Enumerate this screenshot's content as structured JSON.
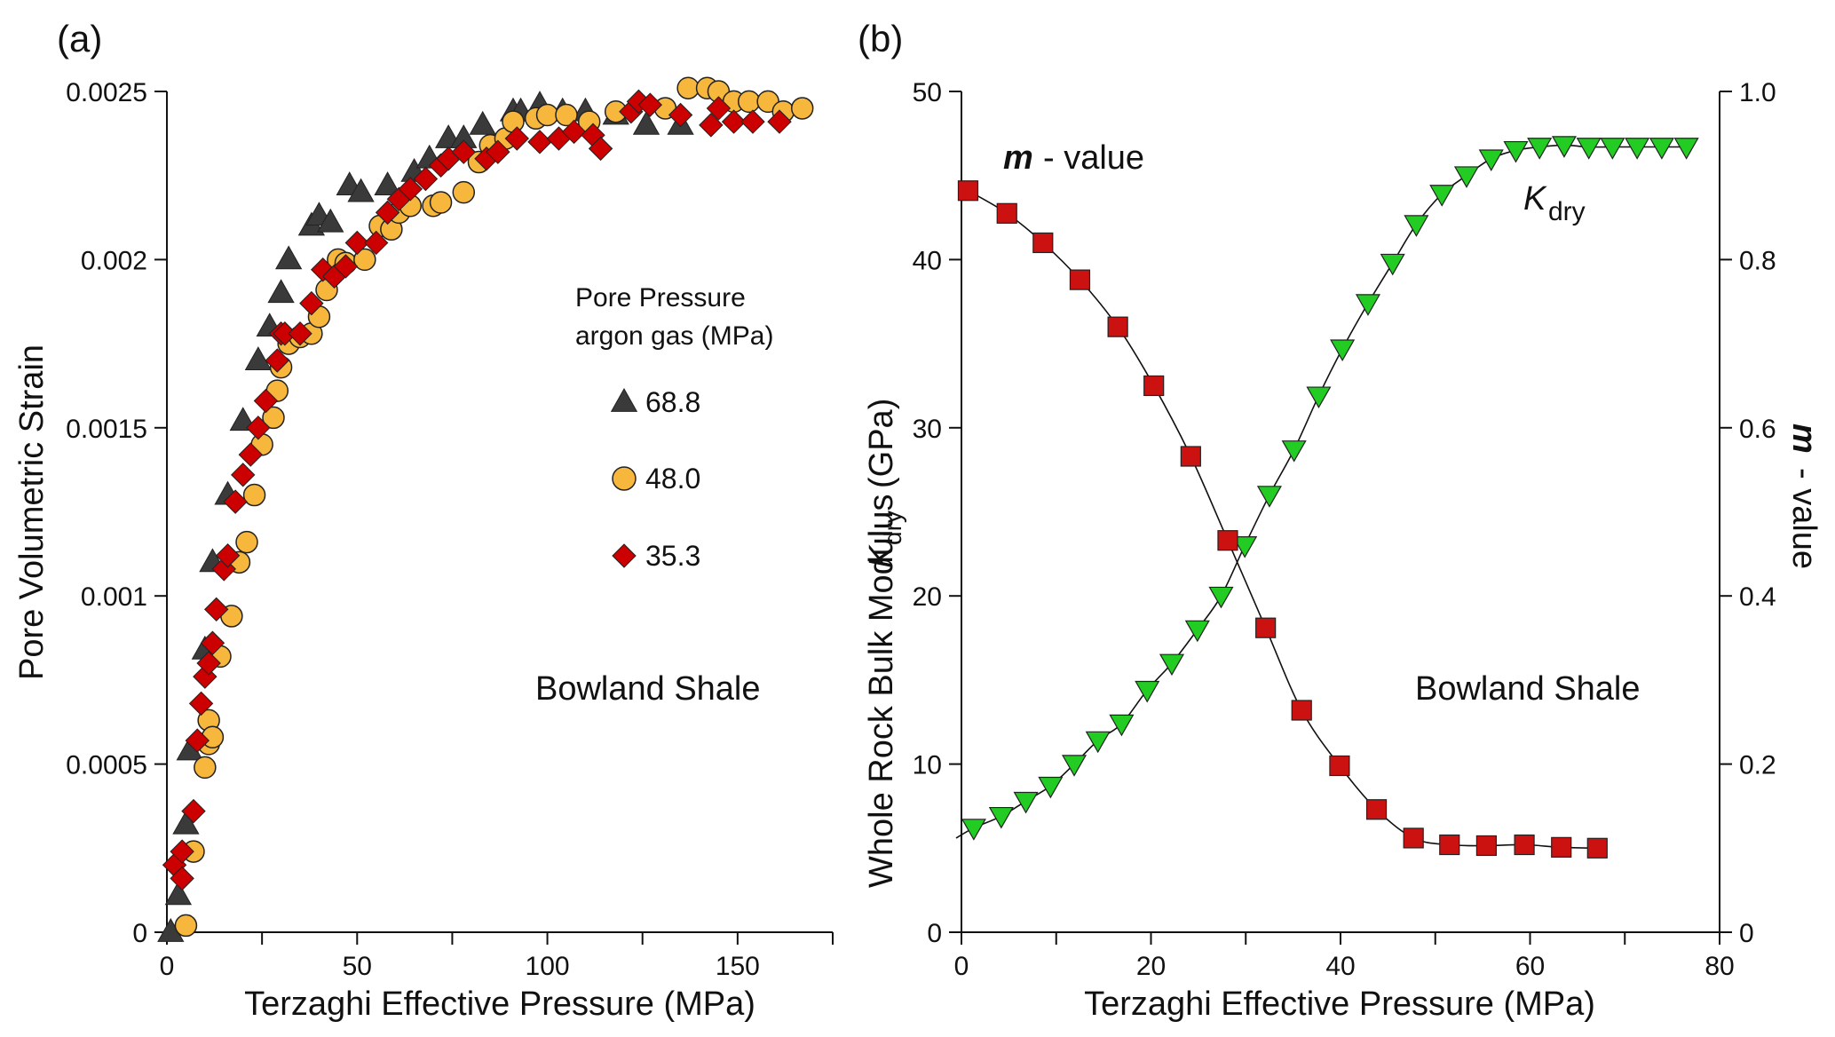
{
  "chart_data": [
    {
      "panel_label": "(a)",
      "type": "scatter",
      "xlabel": "Terzaghi Effective Pressure (MPa)",
      "ylabel": "Pore Volumetric Strain",
      "xlim": [
        0,
        175
      ],
      "ylim": [
        0,
        0.0025
      ],
      "xticks": [
        0,
        50,
        100,
        150
      ],
      "xminor": [
        25,
        75,
        125,
        175
      ],
      "yticks": [
        0,
        0.0005,
        0.001,
        0.0015,
        0.002,
        0.0025
      ],
      "ytick_labels": [
        "0",
        "0.0005",
        "0.001",
        "0.0015",
        "0.002",
        "0.0025"
      ],
      "xtick_labels": [
        "0",
        "50",
        "100",
        "150"
      ],
      "legend_title": [
        "Pore Pressure",
        "argon gas (MPa)"
      ],
      "annotation": "Bowland Shale",
      "series": [
        {
          "name": "68.8",
          "marker": "triangle-up",
          "color": "#3a3a3a",
          "x": [
            1,
            3,
            5,
            6,
            10,
            12,
            16,
            20,
            24,
            27,
            30,
            32,
            38,
            40,
            43,
            48,
            51,
            58,
            65,
            69,
            74,
            78,
            83,
            91,
            93,
            98,
            104,
            110,
            118,
            126,
            135
          ],
          "y": [
            0,
            0.00011,
            0.00032,
            0.00054,
            0.00084,
            0.0011,
            0.0013,
            0.00152,
            0.0017,
            0.0018,
            0.0019,
            0.002,
            0.0021,
            0.00213,
            0.00211,
            0.00222,
            0.0022,
            0.00222,
            0.00226,
            0.0023,
            0.00236,
            0.00236,
            0.0024,
            0.00244,
            0.00244,
            0.00246,
            0.00244,
            0.00244,
            0.00243,
            0.0024,
            0.0024
          ]
        },
        {
          "name": "48.0",
          "marker": "circle",
          "color": "#f6b73c",
          "x": [
            5,
            7,
            10,
            11,
            11,
            12,
            14,
            17,
            19,
            21,
            23,
            25,
            28,
            29,
            30,
            32,
            35,
            38,
            40,
            42,
            45,
            47,
            52,
            56,
            59,
            61,
            64,
            70,
            72,
            78,
            82,
            85,
            89,
            91,
            97,
            100,
            105,
            111,
            118,
            131,
            137,
            142,
            145,
            149,
            153,
            158,
            162,
            167
          ],
          "y": [
            2e-05,
            0.00024,
            0.00049,
            0.00056,
            0.00063,
            0.00058,
            0.00082,
            0.00094,
            0.0011,
            0.00116,
            0.0013,
            0.00145,
            0.00153,
            0.00161,
            0.00168,
            0.00175,
            0.00177,
            0.00178,
            0.00183,
            0.00191,
            0.002,
            0.00199,
            0.002,
            0.0021,
            0.00209,
            0.00214,
            0.00216,
            0.00216,
            0.00217,
            0.0022,
            0.00229,
            0.00234,
            0.00236,
            0.00241,
            0.00242,
            0.00243,
            0.00243,
            0.00241,
            0.00244,
            0.00245,
            0.00251,
            0.00251,
            0.0025,
            0.00247,
            0.00247,
            0.00247,
            0.00244,
            0.00245
          ]
        },
        {
          "name": "35.3",
          "marker": "diamond",
          "color": "#cc0000",
          "x": [
            2,
            4,
            4,
            7,
            8,
            9,
            10,
            11,
            12,
            13,
            15,
            16,
            18,
            20,
            22,
            24,
            26,
            29,
            30,
            31,
            35,
            38,
            41,
            44,
            47,
            50,
            55,
            58,
            61,
            64,
            68,
            72,
            74,
            78,
            84,
            87,
            92,
            98,
            103,
            107,
            112,
            114,
            122,
            124,
            127,
            135,
            143,
            145,
            149,
            154,
            161
          ],
          "y": [
            0.0002,
            0.00016,
            0.00024,
            0.00036,
            0.00057,
            0.00068,
            0.00076,
            0.0008,
            0.00086,
            0.00096,
            0.00108,
            0.00112,
            0.00128,
            0.00136,
            0.00142,
            0.0015,
            0.00158,
            0.0017,
            0.00178,
            0.00178,
            0.00178,
            0.00187,
            0.00197,
            0.00195,
            0.00198,
            0.00205,
            0.00205,
            0.00214,
            0.00218,
            0.00221,
            0.00224,
            0.00228,
            0.0023,
            0.00232,
            0.0023,
            0.00232,
            0.00236,
            0.00235,
            0.00236,
            0.00238,
            0.00237,
            0.00233,
            0.00244,
            0.00247,
            0.00246,
            0.00243,
            0.0024,
            0.00245,
            0.00241,
            0.00241,
            0.00241
          ]
        }
      ]
    },
    {
      "panel_label": "(b)",
      "type": "line",
      "xlabel": "Terzaghi Effective Pressure (MPa)",
      "ylabel_left": "Whole Rock Bulk Modulus",
      "ylabel_left_symbol": "K",
      "ylabel_left_sub": "dry",
      "ylabel_left_unit": "(GPa)",
      "ylabel_right_bold": "m",
      "ylabel_right": "- value",
      "xlim": [
        0,
        80
      ],
      "ylim_left": [
        0,
        50
      ],
      "ylim_right": [
        0,
        1.0
      ],
      "xticks": [
        0,
        20,
        40,
        60,
        80
      ],
      "xminor": [
        10,
        30,
        50,
        70
      ],
      "xtick_labels": [
        "0",
        "20",
        "40",
        "60",
        "80"
      ],
      "yticks_left": [
        "0",
        "10",
        "20",
        "30",
        "40",
        "50"
      ],
      "yticks_right": [
        "0",
        "0.2",
        "0.4",
        "0.6",
        "0.8",
        "1.0"
      ],
      "annotation": "Bowland Shale",
      "label_m_bold": "m",
      "label_m_rest": "-  value",
      "label_k": "K",
      "label_k_sub": "dry",
      "series": [
        {
          "name": "K_dry",
          "axis": "left",
          "marker": "triangle-down",
          "color": "#22cc22",
          "x": [
            1.3,
            4.2,
            6.8,
            9.4,
            11.9,
            14.4,
            16.9,
            19.6,
            22.2,
            24.9,
            27.4,
            29.9,
            32.5,
            35.1,
            37.7,
            40.2,
            42.9,
            45.5,
            48.0,
            50.7,
            53.3,
            55.9,
            58.5,
            61.0,
            63.6,
            66.2,
            68.7,
            71.3,
            73.9,
            76.5
          ],
          "y": [
            6.2,
            6.9,
            7.8,
            8.7,
            10.0,
            11.4,
            12.4,
            14.4,
            16.0,
            18.0,
            20.0,
            23.0,
            26.0,
            28.7,
            31.9,
            34.7,
            37.4,
            39.8,
            42.1,
            43.9,
            45.0,
            46.0,
            46.5,
            46.7,
            46.8,
            46.7,
            46.7,
            46.7,
            46.7,
            46.7
          ]
        },
        {
          "name": "m-value",
          "axis": "right",
          "marker": "square",
          "color": "#cc1111",
          "x": [
            0.7,
            4.8,
            8.6,
            12.5,
            16.5,
            20.3,
            24.2,
            28.1,
            32.1,
            35.9,
            39.9,
            43.8,
            47.7,
            51.5,
            55.4,
            59.4,
            63.3,
            67.1
          ],
          "y": [
            0.882,
            0.855,
            0.82,
            0.776,
            0.72,
            0.65,
            0.566,
            0.466,
            0.362,
            0.264,
            0.198,
            0.146,
            0.112,
            0.104,
            0.103,
            0.104,
            0.101,
            0.1
          ]
        }
      ]
    }
  ]
}
